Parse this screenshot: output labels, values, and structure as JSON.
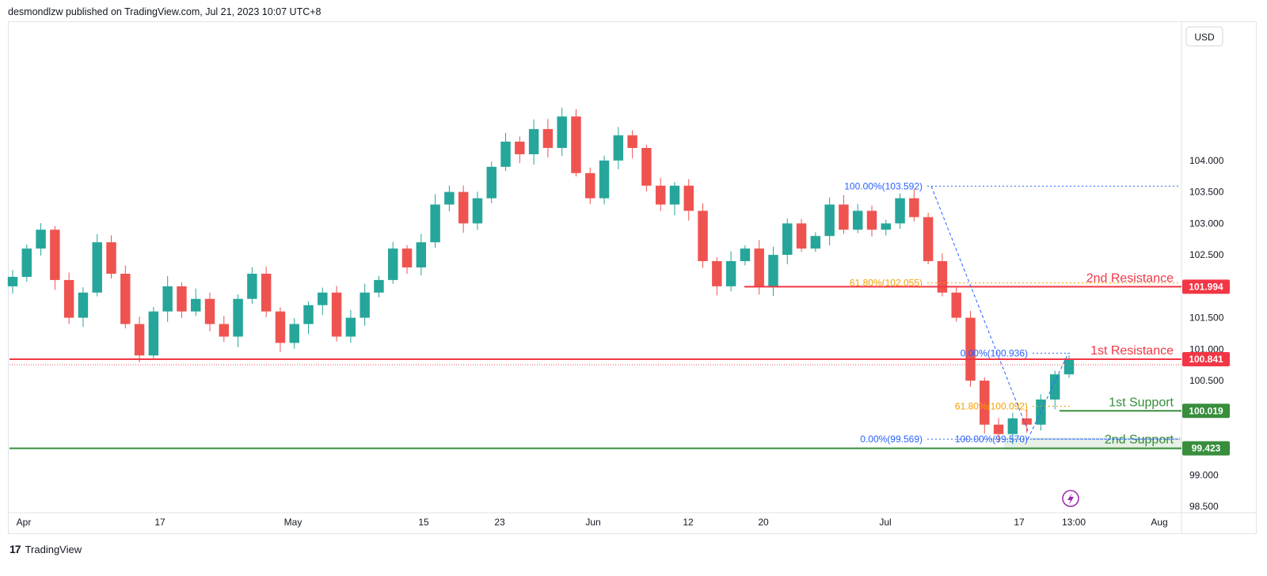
{
  "header": {
    "text": "desmondlzw published on TradingView.com, Jul 21, 2023 10:07 UTC+8"
  },
  "footer": {
    "brand": "TradingView",
    "logo_text": "17"
  },
  "currency_button": "USD",
  "colors": {
    "up": "#26a69a",
    "down": "#ef5350",
    "resistance": "#f23645",
    "support": "#388e3c",
    "fib_blue": "#2962ff",
    "fib_orange": "#f59f00"
  },
  "chart_data": {
    "type": "candlestick",
    "ylim": [
      98.4,
      106.2
    ],
    "y_ticks": [
      "104.000",
      "103.500",
      "103.000",
      "102.500",
      "101.500",
      "101.000",
      "100.500",
      "99.000",
      "98.500"
    ],
    "x_ticks": [
      "Apr",
      "17",
      "May",
      "15",
      "23",
      "Jun",
      "12",
      "20",
      "Jul",
      "17",
      "13:00",
      "Aug"
    ],
    "levels": [
      {
        "label": "2nd Resistance",
        "value": 101.994,
        "value_label": "101.994",
        "color": "#f23645"
      },
      {
        "label": "1st Resistance",
        "value": 100.841,
        "value_label": "100.841",
        "color": "#f23645"
      },
      {
        "label": "1st Support",
        "value": 100.019,
        "value_label": "100.019",
        "color": "#388e3c"
      },
      {
        "label": "2nd Support",
        "value": 99.423,
        "value_label": "99.423",
        "color": "#388e3c"
      }
    ],
    "fib_labels": [
      {
        "text": "100.00%(103.592)",
        "value": 103.592
      },
      {
        "text": "61.80%(102.055)",
        "value": 102.055
      },
      {
        "text": "0.00%(100.936)",
        "value": 100.936
      },
      {
        "text": "61.80%(100.092)",
        "value": 100.092
      },
      {
        "text": "0.00%(99.569)",
        "value": 99.569
      },
      {
        "text": "100.00%(99.570)",
        "value": 99.57
      }
    ],
    "close_series": [
      102.15,
      102.6,
      102.9,
      102.1,
      101.5,
      101.9,
      102.7,
      102.2,
      101.4,
      100.9,
      101.6,
      102.0,
      101.6,
      101.8,
      101.4,
      101.2,
      101.8,
      102.2,
      101.6,
      101.1,
      101.4,
      101.7,
      101.9,
      101.2,
      101.5,
      101.9,
      102.1,
      102.6,
      102.3,
      102.7,
      103.3,
      103.5,
      103.0,
      103.4,
      103.9,
      104.3,
      104.1,
      104.5,
      104.2,
      104.7,
      103.8,
      103.4,
      104.0,
      104.4,
      104.2,
      103.6,
      103.3,
      103.6,
      103.2,
      102.4,
      102.0,
      102.4,
      102.6,
      102.0,
      102.5,
      103.0,
      102.6,
      102.8,
      103.3,
      102.9,
      103.2,
      102.9,
      103.0,
      103.4,
      103.1,
      102.4,
      101.9,
      101.5,
      100.5,
      99.8,
      99.65,
      99.9,
      99.8,
      100.2,
      100.6,
      100.84
    ]
  }
}
